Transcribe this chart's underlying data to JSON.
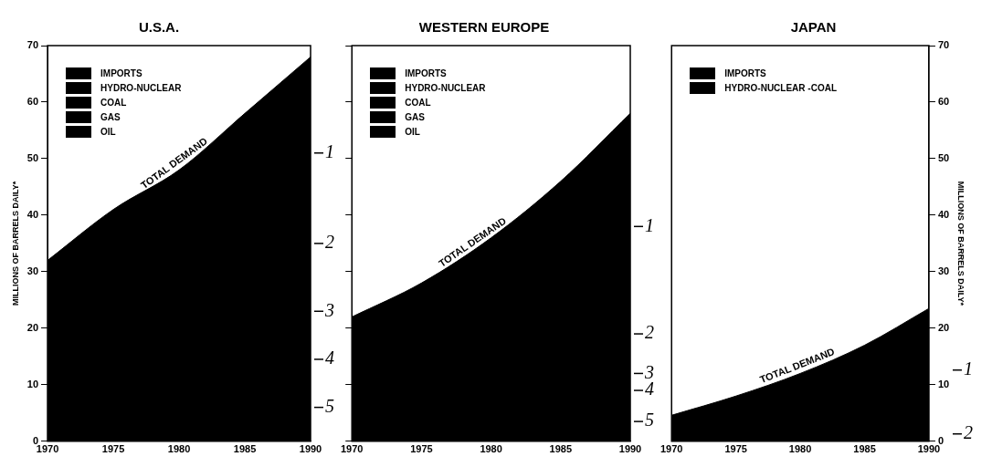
{
  "chart_data": [
    {
      "type": "area",
      "title": "U.S.A.",
      "ylabel": "MILLIONS OF BARRELS DAILY*",
      "x": [
        1970,
        1975,
        1980,
        1985,
        1990
      ],
      "xlim": [
        1970,
        1990
      ],
      "xticks": [
        1970,
        1975,
        1980,
        1985,
        1990
      ],
      "ylim": [
        0,
        70
      ],
      "yticks": [
        0,
        10,
        20,
        30,
        40,
        50,
        60,
        70
      ],
      "series": [
        {
          "color": "#000000",
          "values": [
            32,
            41,
            48,
            58,
            68
          ]
        }
      ],
      "annotations": [
        "IMPORTS",
        "HYDRO-NUCLEAR",
        "COAL",
        "GAS",
        "OIL",
        {
          "text": "TOTAL DEMAND",
          "x": 1980,
          "y": 48
        },
        {
          "text": "1",
          "x": 1990,
          "y": 51
        },
        {
          "text": "2",
          "x": 1990,
          "y": 35
        },
        {
          "text": "3",
          "x": 1990,
          "y": 23
        },
        {
          "text": "4",
          "x": 1990,
          "y": 14.5
        },
        {
          "text": "5",
          "x": 1990,
          "y": 6
        }
      ]
    },
    {
      "type": "area",
      "title": "WESTERN EUROPE",
      "x": [
        1970,
        1975,
        1980,
        1985,
        1990
      ],
      "xlim": [
        1970,
        1990
      ],
      "xticks": [
        1970,
        1975,
        1980,
        1985,
        1990
      ],
      "ylim": [
        0,
        70
      ],
      "yticks": [
        {
          "value": 0,
          "label": null
        },
        {
          "value": 10,
          "label": null
        },
        {
          "value": 20,
          "label": null
        },
        {
          "value": 30,
          "label": null
        },
        {
          "value": 40,
          "label": null
        },
        {
          "value": 50,
          "label": null
        },
        {
          "value": 60,
          "label": null
        },
        {
          "value": 70,
          "label": null
        }
      ],
      "tick_labels": "x",
      "series": [
        {
          "color": "#000000",
          "values": [
            22,
            28,
            36,
            46,
            58
          ]
        }
      ],
      "annotations": [
        "IMPORTS",
        "HYDRO-NUCLEAR",
        "COAL",
        "GAS",
        "OIL",
        {
          "text": "TOTAL DEMAND",
          "x": 1979,
          "y": 34
        },
        {
          "text": "1",
          "x": 1990,
          "y": 38
        },
        {
          "text": "2",
          "x": 1990,
          "y": 19
        },
        {
          "text": "3",
          "x": 1990,
          "y": 12
        },
        {
          "text": "4",
          "x": 1990,
          "y": 9
        },
        {
          "text": "5",
          "x": 1990,
          "y": 3.5
        }
      ]
    },
    {
      "type": "area",
      "title": "JAPAN",
      "ylabel": "MILLIONS OF BARRELS DAILY*",
      "x": [
        1970,
        1975,
        1980,
        1985,
        1990
      ],
      "xlim": [
        1970,
        1990
      ],
      "xticks": [
        1970,
        1975,
        1980,
        1985,
        1990
      ],
      "ylim": [
        0,
        70
      ],
      "yticks": [
        0,
        10,
        20,
        30,
        40,
        50,
        60,
        70
      ],
      "series": [
        {
          "color": "#000000",
          "values": [
            4.6,
            8,
            12,
            17,
            23.5
          ]
        }
      ],
      "annotations": [
        "IMPORTS",
        "HYDRO-NUCLEAR -COAL",
        {
          "text": "TOTAL DEMAND",
          "x": 1980,
          "y": 12
        },
        {
          "text": "1",
          "x": 1990,
          "y": 12.6
        },
        {
          "text": "2",
          "x": 1990,
          "y": 1.3
        }
      ]
    }
  ]
}
